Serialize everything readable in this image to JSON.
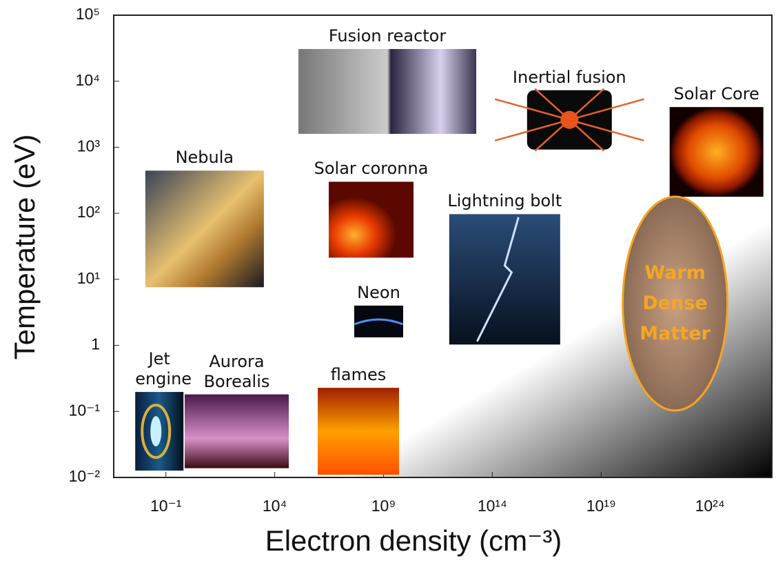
{
  "chart_data": {
    "type": "annotated-regions",
    "xlabel": "Electron density (cm⁻³)",
    "ylabel": "Temperature (eV)",
    "xscale": "log",
    "yscale": "log",
    "xlim": [
      0.0004,
      7e+26
    ],
    "ylim": [
      0.01,
      100000
    ],
    "xticks": [
      {
        "value": 0.1,
        "label": "10⁻¹"
      },
      {
        "value": 10000,
        "label": "10⁴"
      },
      {
        "value": 1000000000.0,
        "label": "10⁹"
      },
      {
        "value": 100000000000000.0,
        "label": "10¹⁴"
      },
      {
        "value": 1e+19,
        "label": "10¹⁹"
      },
      {
        "value": 1e+24,
        "label": "10²⁴"
      }
    ],
    "yticks": [
      {
        "value": 0.01,
        "label": "10⁻²"
      },
      {
        "value": 0.1,
        "label": "10⁻¹"
      },
      1,
      {
        "value": 10,
        "label": "10¹"
      },
      {
        "value": 100,
        "label": "10²"
      },
      {
        "value": 1000,
        "label": "10³"
      },
      {
        "value": 10000,
        "label": "10⁴"
      },
      {
        "value": 100000,
        "label": "10⁵"
      }
    ],
    "regions": [
      {
        "label": "Fusion reactor",
        "x": 1500000000.0,
        "y": 7000
      },
      {
        "label": "Inertial fusion",
        "x": 3.5e+17,
        "y": 2600
      },
      {
        "label": "Solar Core",
        "x": 2e+24,
        "y": 850
      },
      {
        "label": "Nebula",
        "x": 6,
        "y": 58
      },
      {
        "label": "Solar coronna",
        "x": 270000000.0,
        "y": 80
      },
      {
        "label": "Lightning bolt",
        "x": 370000000000000.0,
        "y": 10
      },
      {
        "label": "Neon",
        "x": 600000000.0,
        "y": 2.3
      },
      {
        "label": "Jet engine",
        "x": 0.05,
        "y": 0.05
      },
      {
        "label": "Aurora Borealis",
        "x": 180,
        "y": 0.05
      },
      {
        "label": "flames",
        "x": 70000000.0,
        "y": 0.05
      }
    ],
    "highlight": {
      "label": "Warm Dense Matter",
      "x": 2.5e+22,
      "y": 4.3,
      "color": "#f5a623"
    }
  }
}
